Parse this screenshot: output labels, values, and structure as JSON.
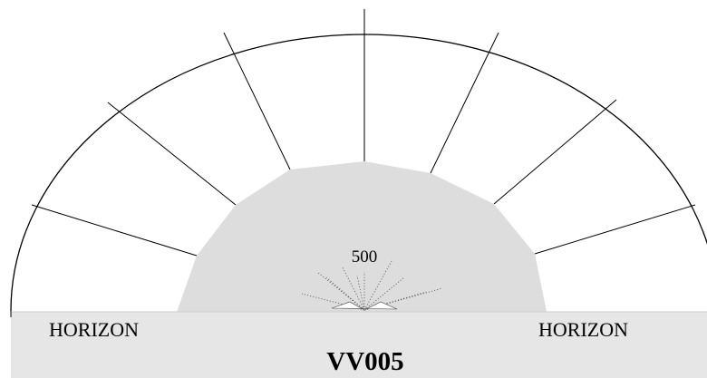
{
  "chart_data": {
    "type": "polar-horizon",
    "station_id": "VV005",
    "horizon_labels": {
      "left": "HORIZON",
      "right": "HORIZON"
    },
    "radial_scale_label": "500",
    "sector_count": 12,
    "colors": {
      "background": "#ffffff",
      "visibility_fill": "#dddddd",
      "ground_band": "#e6e6e6",
      "lines": "#000000"
    }
  }
}
